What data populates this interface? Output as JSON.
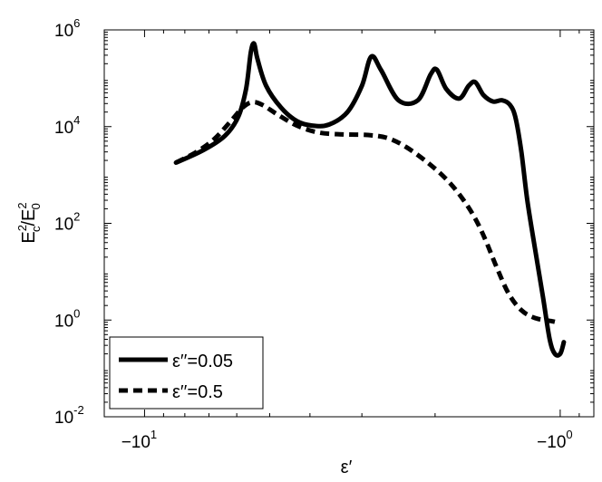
{
  "chart_data": {
    "type": "line",
    "xlabel": "ε′",
    "ylabel": {
      "base": "E",
      "num_sup": "2",
      "num_sub": "c",
      "slash": "/",
      "den_base": "E",
      "den_sup": "2",
      "den_sub": "0"
    },
    "x_scale": "log-reversed (negative values)",
    "y_scale": "log",
    "xlim": [
      -12.5,
      -0.83
    ],
    "ylim": [
      0.01,
      1000000
    ],
    "x_ticks": [
      {
        "value": -10,
        "base": "−10",
        "exp": "1"
      },
      {
        "value": -1,
        "base": "−10",
        "exp": "0"
      }
    ],
    "y_ticks": [
      {
        "value": 0.01,
        "base": "10",
        "exp": "-2"
      },
      {
        "value": 1,
        "base": "10",
        "exp": "0"
      },
      {
        "value": 100,
        "base": "10",
        "exp": "2"
      },
      {
        "value": 10000,
        "base": "10",
        "exp": "4"
      },
      {
        "value": 1000000,
        "base": "10",
        "exp": "6"
      }
    ],
    "grid": false,
    "legend_position": "bottom-left",
    "series": [
      {
        "name": "ε′′=0.05",
        "style": "solid",
        "color": "#000000",
        "points": [
          [
            -8.4,
            1800
          ],
          [
            -7.2,
            3300
          ],
          [
            -6.4,
            6500
          ],
          [
            -5.95,
            16000
          ],
          [
            -5.7,
            60000
          ],
          [
            -5.55,
            350000
          ],
          [
            -5.45,
            520000
          ],
          [
            -5.35,
            250000
          ],
          [
            -5.1,
            70000
          ],
          [
            -4.7,
            25000
          ],
          [
            -4.3,
            13000
          ],
          [
            -3.95,
            10500
          ],
          [
            -3.6,
            11000
          ],
          [
            -3.25,
            20000
          ],
          [
            -3.0,
            70000
          ],
          [
            -2.85,
            280000
          ],
          [
            -2.7,
            150000
          ],
          [
            -2.45,
            35000
          ],
          [
            -2.2,
            35000
          ],
          [
            -2.05,
            120000
          ],
          [
            -1.98,
            150000
          ],
          [
            -1.88,
            60000
          ],
          [
            -1.75,
            38000
          ],
          [
            -1.66,
            70000
          ],
          [
            -1.6,
            83000
          ],
          [
            -1.53,
            45000
          ],
          [
            -1.45,
            33000
          ],
          [
            -1.38,
            35000
          ],
          [
            -1.32,
            28000
          ],
          [
            -1.28,
            15000
          ],
          [
            -1.24,
            3000
          ],
          [
            -1.2,
            300
          ],
          [
            -1.15,
            30
          ],
          [
            -1.1,
            3
          ],
          [
            -1.06,
            0.4
          ],
          [
            -1.03,
            0.2
          ],
          [
            -1.0,
            0.2
          ],
          [
            -0.98,
            0.35
          ]
        ]
      },
      {
        "name": "ε′′=0.5",
        "style": "dashed",
        "color": "#000000",
        "points": [
          [
            -8.4,
            1800
          ],
          [
            -7.5,
            3000
          ],
          [
            -6.8,
            5500
          ],
          [
            -6.2,
            13000
          ],
          [
            -5.8,
            25000
          ],
          [
            -5.5,
            32000
          ],
          [
            -5.2,
            28000
          ],
          [
            -4.8,
            18000
          ],
          [
            -4.3,
            10500
          ],
          [
            -3.8,
            7500
          ],
          [
            -3.3,
            6900
          ],
          [
            -2.9,
            6700
          ],
          [
            -2.6,
            5800
          ],
          [
            -2.35,
            3800
          ],
          [
            -2.1,
            1900
          ],
          [
            -1.9,
            900
          ],
          [
            -1.75,
            400
          ],
          [
            -1.62,
            150
          ],
          [
            -1.52,
            50
          ],
          [
            -1.42,
            12
          ],
          [
            -1.33,
            3.5
          ],
          [
            -1.24,
            1.6
          ],
          [
            -1.15,
            1.1
          ],
          [
            -1.05,
            0.95
          ],
          [
            -1.02,
            0.9
          ]
        ]
      }
    ]
  }
}
